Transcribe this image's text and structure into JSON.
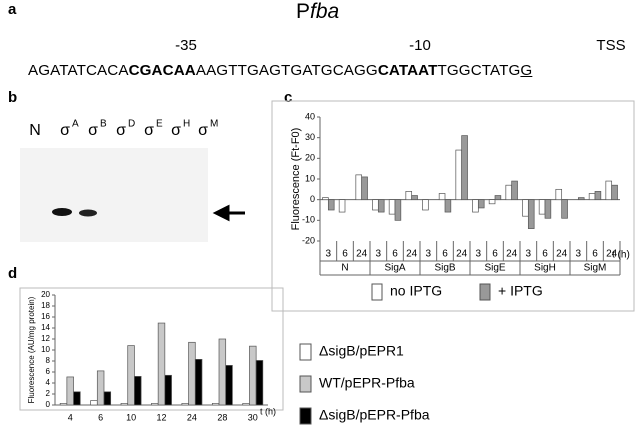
{
  "panel_labels": [
    "a",
    "b",
    "c",
    "d"
  ],
  "panel_a": {
    "title_base": "P",
    "title_italic": "fba",
    "marks": [
      "-35",
      "-10",
      "TSS"
    ],
    "sequence": [
      "AGATATCACA",
      "CGACAA",
      "AAGTTGAGTGATGCAGG",
      "CATAAT",
      "TGGCTATG",
      "G"
    ]
  },
  "panel_b": {
    "lanes": [
      {
        "base": "N"
      },
      {
        "base": "σ",
        "sup": "A"
      },
      {
        "base": "σ",
        "sup": "B"
      },
      {
        "base": "σ",
        "sup": "D"
      },
      {
        "base": "σ",
        "sup": "E"
      },
      {
        "base": "σ",
        "sup": "H"
      },
      {
        "base": "σ",
        "sup": "M"
      }
    ]
  },
  "chart_data": [
    {
      "type": "bar",
      "ylabel": "Fluorescence (Ft-F0)",
      "xlabel": "t (h)",
      "categories": [
        "3",
        "6",
        "24",
        "3",
        "6",
        "24",
        "3",
        "6",
        "24",
        "3",
        "6",
        "24",
        "3",
        "6",
        "24",
        "3",
        "6",
        "24"
      ],
      "groups": [
        "N",
        "SigA",
        "SigB",
        "SigE",
        "SigH",
        "SigM"
      ],
      "series": [
        {
          "name": "no IPTG",
          "color": "#ffffff",
          "values": [
            1,
            -6,
            12,
            -5,
            -7,
            4,
            -5,
            3,
            24,
            -6,
            -2,
            7,
            -8,
            -7,
            5,
            0,
            3,
            9
          ]
        },
        {
          "name": "+ IPTG",
          "color": "#999999",
          "values": [
            -5,
            0,
            11,
            -6,
            -10,
            2,
            0,
            -6,
            31,
            -4,
            2,
            9,
            -14,
            -9,
            -9,
            1,
            4,
            7
          ]
        }
      ],
      "ylim": [
        -20,
        40
      ],
      "yticks": [
        -20,
        -10,
        0,
        10,
        20,
        30,
        40
      ]
    },
    {
      "type": "bar",
      "ylabel": "Fluorescence (AU/mg protein)",
      "xlabel": "t (h)",
      "categories": [
        "4",
        "6",
        "10",
        "12",
        "24",
        "28",
        "30"
      ],
      "series": [
        {
          "name": "ΔsigB/pEPR1",
          "color": "#ffffff",
          "values": [
            0.3,
            0.8,
            0.3,
            0.3,
            0.3,
            0.3,
            0.3
          ]
        },
        {
          "name": "WT/pEPR-Pfba",
          "color": "#c8c8c8",
          "values": [
            5.1,
            6.2,
            10.8,
            14.9,
            11.4,
            12,
            10.7
          ]
        },
        {
          "name": "ΔsigB/pEPR-Pfba",
          "color": "#000000",
          "values": [
            2.4,
            2.4,
            5.2,
            5.4,
            8.3,
            7.2,
            8.1
          ]
        }
      ],
      "ylim": [
        0,
        20
      ],
      "yticks": [
        0,
        2,
        4,
        6,
        8,
        10,
        12,
        14,
        16,
        18,
        20
      ]
    }
  ]
}
